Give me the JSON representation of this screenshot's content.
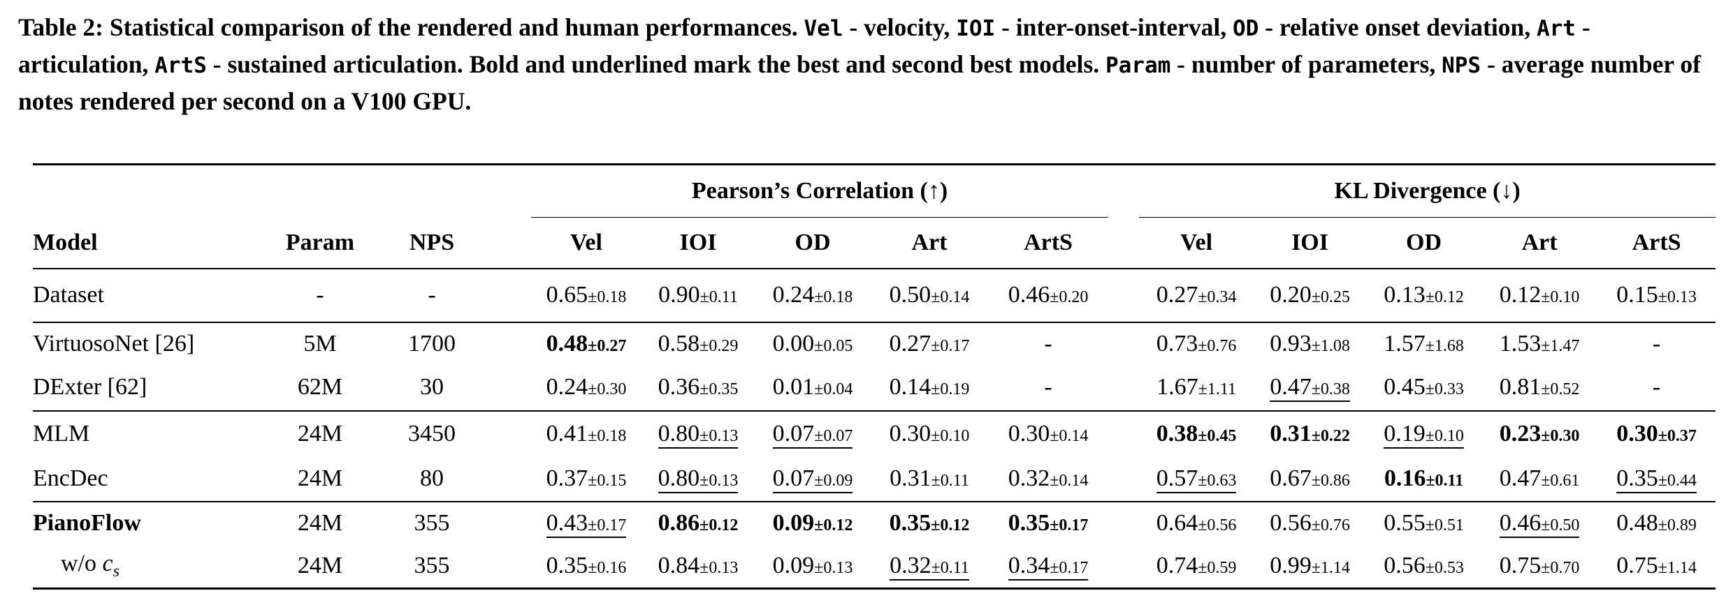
{
  "caption": [
    {
      "t": "Table 2: Statistical comparison of the rendered and human performances. "
    },
    {
      "t": "Vel",
      "code": true
    },
    {
      "t": " - velocity, "
    },
    {
      "t": "IOI",
      "code": true
    },
    {
      "t": " - inter-onset-interval, "
    },
    {
      "t": "OD",
      "code": true
    },
    {
      "t": " - relative onset deviation, "
    },
    {
      "t": "Art",
      "code": true
    },
    {
      "t": " - articulation, "
    },
    {
      "t": "ArtS",
      "code": true
    },
    {
      "t": " - sustained articulation. Bold and underlined mark the best and second best models. "
    },
    {
      "t": "Param",
      "code": true
    },
    {
      "t": " - number of parameters, "
    },
    {
      "t": "NPS",
      "code": true
    },
    {
      "t": " - average number of notes rendered per second on a V100 GPU."
    }
  ],
  "header": {
    "group_pearson": "Pearson’s Correlation (↑)",
    "group_kl": "KL Divergence (↓)",
    "model": "Model",
    "param": "Param",
    "nps": "NPS",
    "metrics": [
      "Vel",
      "IOI",
      "OD",
      "Art",
      "ArtS"
    ]
  },
  "rows": [
    {
      "model": "Dataset",
      "param": "-",
      "nps": "-",
      "group": "start",
      "pearson": [
        {
          "v": "0.65",
          "s": "±0.18"
        },
        {
          "v": "0.90",
          "s": "±0.11"
        },
        {
          "v": "0.24",
          "s": "±0.18"
        },
        {
          "v": "0.50",
          "s": "±0.14"
        },
        {
          "v": "0.46",
          "s": "±0.20"
        }
      ],
      "kl": [
        {
          "v": "0.27",
          "s": "±0.34"
        },
        {
          "v": "0.20",
          "s": "±0.25"
        },
        {
          "v": "0.13",
          "s": "±0.12"
        },
        {
          "v": "0.12",
          "s": "±0.10"
        },
        {
          "v": "0.15",
          "s": "±0.13"
        }
      ]
    },
    {
      "model": "VirtuosoNet [26]",
      "param": "5M",
      "nps": "1700",
      "group": "start",
      "pearson": [
        {
          "v": "0.48",
          "s": "±0.27",
          "bold": true
        },
        {
          "v": "0.58",
          "s": "±0.29"
        },
        {
          "v": "0.00",
          "s": "±0.05"
        },
        {
          "v": "0.27",
          "s": "±0.17"
        },
        {
          "v": "-"
        }
      ],
      "kl": [
        {
          "v": "0.73",
          "s": "±0.76"
        },
        {
          "v": "0.93",
          "s": "±1.08"
        },
        {
          "v": "1.57",
          "s": "±1.68"
        },
        {
          "v": "1.53",
          "s": "±1.47"
        },
        {
          "v": "-"
        }
      ]
    },
    {
      "model": "DExter [62]",
      "param": "62M",
      "nps": "30",
      "pearson": [
        {
          "v": "0.24",
          "s": "±0.30"
        },
        {
          "v": "0.36",
          "s": "±0.35"
        },
        {
          "v": "0.01",
          "s": "±0.04"
        },
        {
          "v": "0.14",
          "s": "±0.19"
        },
        {
          "v": "-"
        }
      ],
      "kl": [
        {
          "v": "1.67",
          "s": "±1.11"
        },
        {
          "v": "0.47",
          "s": "±0.38",
          "underline": true
        },
        {
          "v": "0.45",
          "s": "±0.33"
        },
        {
          "v": "0.81",
          "s": "±0.52"
        },
        {
          "v": "-"
        }
      ]
    },
    {
      "model": "MLM",
      "param": "24M",
      "nps": "3450",
      "group": "start",
      "pearson": [
        {
          "v": "0.41",
          "s": "±0.18"
        },
        {
          "v": "0.80",
          "s": "±0.13",
          "underline": true
        },
        {
          "v": "0.07",
          "s": "±0.07",
          "underline": true
        },
        {
          "v": "0.30",
          "s": "±0.10"
        },
        {
          "v": "0.30",
          "s": "±0.14"
        }
      ],
      "kl": [
        {
          "v": "0.38",
          "s": "±0.45",
          "bold": true
        },
        {
          "v": "0.31",
          "s": "±0.22",
          "bold": true
        },
        {
          "v": "0.19",
          "s": "±0.10",
          "underline": true
        },
        {
          "v": "0.23",
          "s": "±0.30",
          "bold": true
        },
        {
          "v": "0.30",
          "s": "±0.37",
          "bold": true
        }
      ]
    },
    {
      "model": "EncDec",
      "param": "24M",
      "nps": "80",
      "pearson": [
        {
          "v": "0.37",
          "s": "±0.15"
        },
        {
          "v": "0.80",
          "s": "±0.13",
          "underline": true
        },
        {
          "v": "0.07",
          "s": "±0.09",
          "underline": true
        },
        {
          "v": "0.31",
          "s": "±0.11"
        },
        {
          "v": "0.32",
          "s": "±0.14"
        }
      ],
      "kl": [
        {
          "v": "0.57",
          "s": "±0.63",
          "underline": true
        },
        {
          "v": "0.67",
          "s": "±0.86"
        },
        {
          "v": "0.16",
          "s": "±0.11",
          "bold": true
        },
        {
          "v": "0.47",
          "s": "±0.61"
        },
        {
          "v": "0.35",
          "s": "±0.44",
          "underline": true
        }
      ]
    },
    {
      "model": "PianoFlow",
      "model_bold": true,
      "param": "24M",
      "nps": "355",
      "group": "start",
      "pearson": [
        {
          "v": "0.43",
          "s": "±0.17",
          "underline": true
        },
        {
          "v": "0.86",
          "s": "±0.12",
          "bold": true
        },
        {
          "v": "0.09",
          "s": "±0.12",
          "bold": true
        },
        {
          "v": "0.35",
          "s": "±0.12",
          "bold": true
        },
        {
          "v": "0.35",
          "s": "±0.17",
          "bold": true
        }
      ],
      "kl": [
        {
          "v": "0.64",
          "s": "±0.56"
        },
        {
          "v": "0.56",
          "s": "±0.76"
        },
        {
          "v": "0.55",
          "s": "±0.51"
        },
        {
          "v": "0.46",
          "s": "±0.50",
          "underline": true
        },
        {
          "v": "0.48",
          "s": "±0.89"
        }
      ]
    },
    {
      "model": "w/o",
      "model_math": "c",
      "model_sub": "s",
      "indent": true,
      "param": "24M",
      "nps": "355",
      "group": "last",
      "pearson": [
        {
          "v": "0.35",
          "s": "±0.16"
        },
        {
          "v": "0.84",
          "s": "±0.13"
        },
        {
          "v": "0.09",
          "s": "±0.13"
        },
        {
          "v": "0.32",
          "s": "±0.11",
          "underline": true
        },
        {
          "v": "0.34",
          "s": "±0.17",
          "underline": true
        }
      ],
      "kl": [
        {
          "v": "0.74",
          "s": "±0.59"
        },
        {
          "v": "0.99",
          "s": "±1.14"
        },
        {
          "v": "0.56",
          "s": "±0.53"
        },
        {
          "v": "0.75",
          "s": "±0.70"
        },
        {
          "v": "0.75",
          "s": "±1.14"
        }
      ]
    }
  ]
}
